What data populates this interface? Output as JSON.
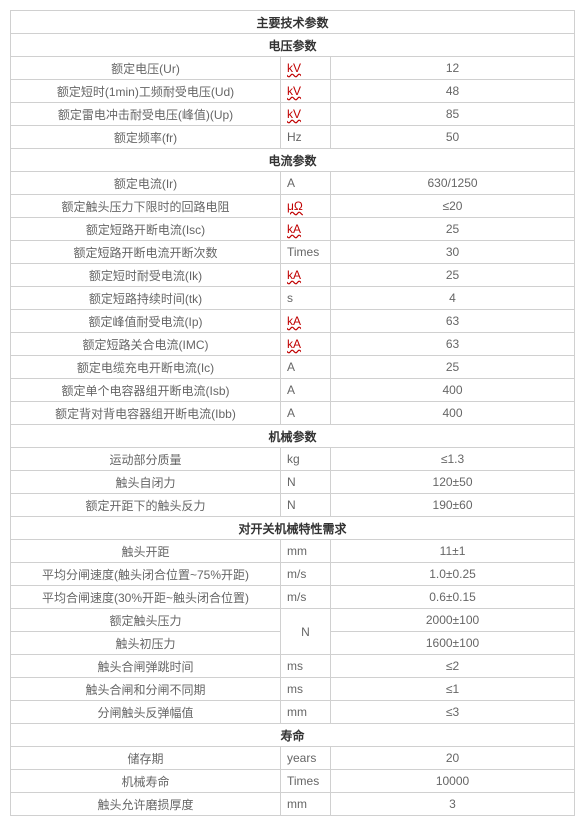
{
  "title": "主要技术参数",
  "sections": [
    {
      "header": "电压参数",
      "rows": [
        {
          "param": "额定电压(Ur)",
          "unit": "kV",
          "unit_wavy": true,
          "value": "12"
        },
        {
          "param": "额定短时(1min)工频耐受电压(Ud)",
          "unit": "kV",
          "unit_wavy": true,
          "value": "48"
        },
        {
          "param": "额定雷电冲击耐受电压(峰值)(Up)",
          "unit": "kV",
          "unit_wavy": true,
          "value": "85"
        },
        {
          "param": "额定频率(fr)",
          "unit": "Hz",
          "unit_wavy": false,
          "value": "50"
        }
      ]
    },
    {
      "header": "电流参数",
      "rows": [
        {
          "param": "额定电流(Ir)",
          "unit": "A",
          "unit_wavy": false,
          "value": "630/1250"
        },
        {
          "param": "额定触头压力下限时的回路电阻",
          "unit": "μΩ",
          "unit_wavy": true,
          "value": "≤20"
        },
        {
          "param": "额定短路开断电流(Isc)",
          "unit": "kA",
          "unit_wavy": true,
          "value": "25"
        },
        {
          "param": "额定短路开断电流开断次数",
          "unit": "Times",
          "unit_wavy": false,
          "value": "30"
        },
        {
          "param": "额定短时耐受电流(Ik)",
          "unit": "kA",
          "unit_wavy": true,
          "value": "25"
        },
        {
          "param": "额定短路持续时间(tk)",
          "unit": "s",
          "unit_wavy": false,
          "value": "4"
        },
        {
          "param": "额定峰值耐受电流(Ip)",
          "unit": "kA",
          "unit_wavy": true,
          "value": "63"
        },
        {
          "param": "额定短路关合电流(IMC)",
          "unit": "kA",
          "unit_wavy": true,
          "value": "63"
        },
        {
          "param": "额定电缆充电开断电流(Ic)",
          "unit": "A",
          "unit_wavy": false,
          "value": "25"
        },
        {
          "param": "额定单个电容器组开断电流(Isb)",
          "unit": "A",
          "unit_wavy": false,
          "value": "400"
        },
        {
          "param": "额定背对背电容器组开断电流(Ibb)",
          "unit": "A",
          "unit_wavy": false,
          "value": "400"
        }
      ]
    },
    {
      "header": "机械参数",
      "rows": [
        {
          "param": "运动部分质量",
          "unit": "kg",
          "unit_wavy": false,
          "value": "≤1.3"
        },
        {
          "param": "触头自闭力",
          "unit": "N",
          "unit_wavy": false,
          "value": "120±50"
        },
        {
          "param": "额定开距下的触头反力",
          "unit": "N",
          "unit_wavy": false,
          "value": "190±60"
        }
      ]
    },
    {
      "header": "对开关机械特性需求",
      "rows_special": [
        {
          "param": "触头开距",
          "unit": "mm",
          "value": "11±1"
        },
        {
          "param": "平均分闸速度(触头闭合位置~75%开距)",
          "unit": "m/s",
          "value": "1.0±0.25"
        },
        {
          "param": "平均合闸速度(30%开距~触头闭合位置)",
          "unit": "m/s",
          "value": "0.6±0.15"
        }
      ],
      "merged_pair": {
        "unit": "N",
        "rows": [
          {
            "param": "额定触头压力",
            "value": "2000±100"
          },
          {
            "param": "触头初压力",
            "value": "1600±100"
          }
        ]
      },
      "rows_after": [
        {
          "param": "触头合闸弹跳时间",
          "unit": "ms",
          "value": "≤2"
        },
        {
          "param": "触头合闸和分闸不同期",
          "unit": "ms",
          "value": "≤1"
        },
        {
          "param": "分闸触头反弹幅值",
          "unit": "mm",
          "value": "≤3"
        }
      ]
    },
    {
      "header": "寿命",
      "rows": [
        {
          "param": "储存期",
          "unit": "years",
          "unit_wavy": false,
          "value": "20"
        },
        {
          "param": "机械寿命",
          "unit": "Times",
          "unit_wavy": false,
          "value": "10000"
        },
        {
          "param": "触头允许磨损厚度",
          "unit": "mm",
          "unit_wavy": false,
          "value": "3"
        }
      ]
    }
  ]
}
